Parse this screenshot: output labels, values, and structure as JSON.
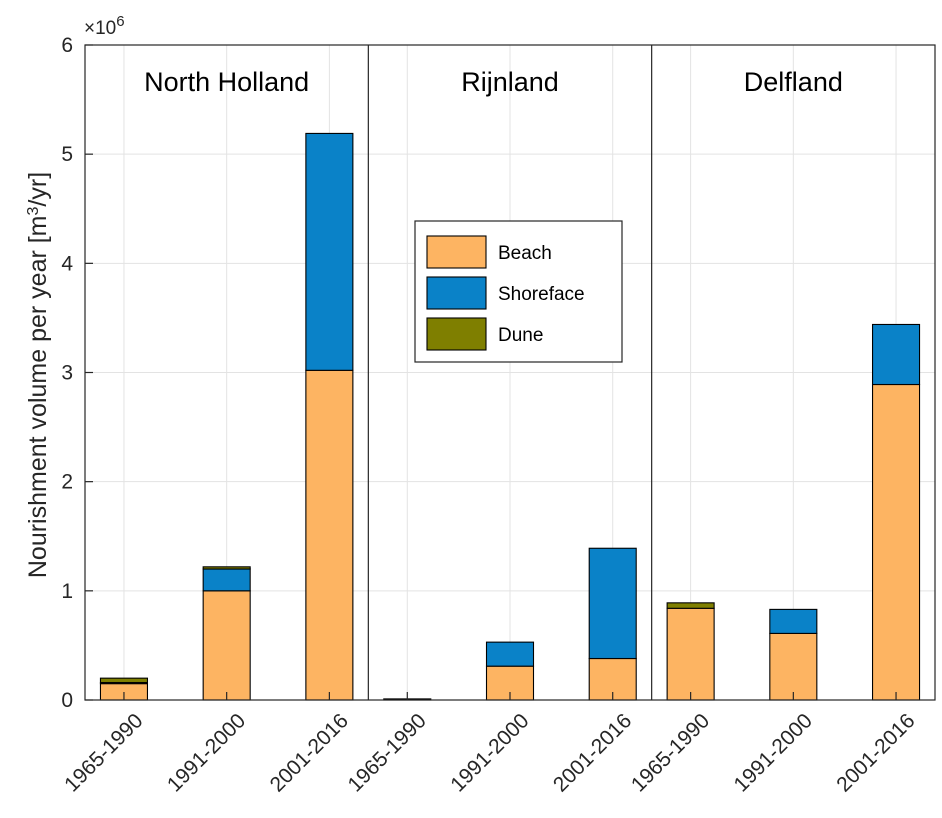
{
  "chart_data": {
    "type": "bar",
    "stacked": true,
    "title": "",
    "xlabel": "",
    "ylabel": "Nourishment volume per year [m³/yr]",
    "ylabel_parts": {
      "main": "Nourishment volume per year [m",
      "sup": "3",
      "tail": "/yr]"
    },
    "y_exponent_label": "×10",
    "y_exponent_power": "6",
    "y_multiplier": 1000000,
    "ylim": [
      0,
      6
    ],
    "yticks": [
      "0",
      "1",
      "2",
      "3",
      "4",
      "5",
      "6"
    ],
    "grid": true,
    "legend_position": "upper-center",
    "region_names": [
      "North Holland",
      "Rijnland",
      "Delfland"
    ],
    "categories": [
      "1965-1990",
      "1991-2000",
      "2001-2016"
    ],
    "series": [
      {
        "name": "Beach",
        "color": "#fdb462",
        "values": [
          [
            0.15,
            1.0,
            3.02
          ],
          [
            0.0,
            0.31,
            0.38
          ],
          [
            0.84,
            0.61,
            2.89
          ]
        ]
      },
      {
        "name": "Shoreface",
        "color": "#0a82c8",
        "values": [
          [
            0.01,
            0.2,
            2.17
          ],
          [
            0.0,
            0.22,
            1.01
          ],
          [
            0.0,
            0.22,
            0.55
          ]
        ]
      },
      {
        "name": "Dune",
        "color": "#7f7f00",
        "values": [
          [
            0.04,
            0.02,
            0.0
          ],
          [
            0.01,
            0.0,
            0.0
          ],
          [
            0.05,
            0.0,
            0.0
          ]
        ]
      }
    ]
  }
}
